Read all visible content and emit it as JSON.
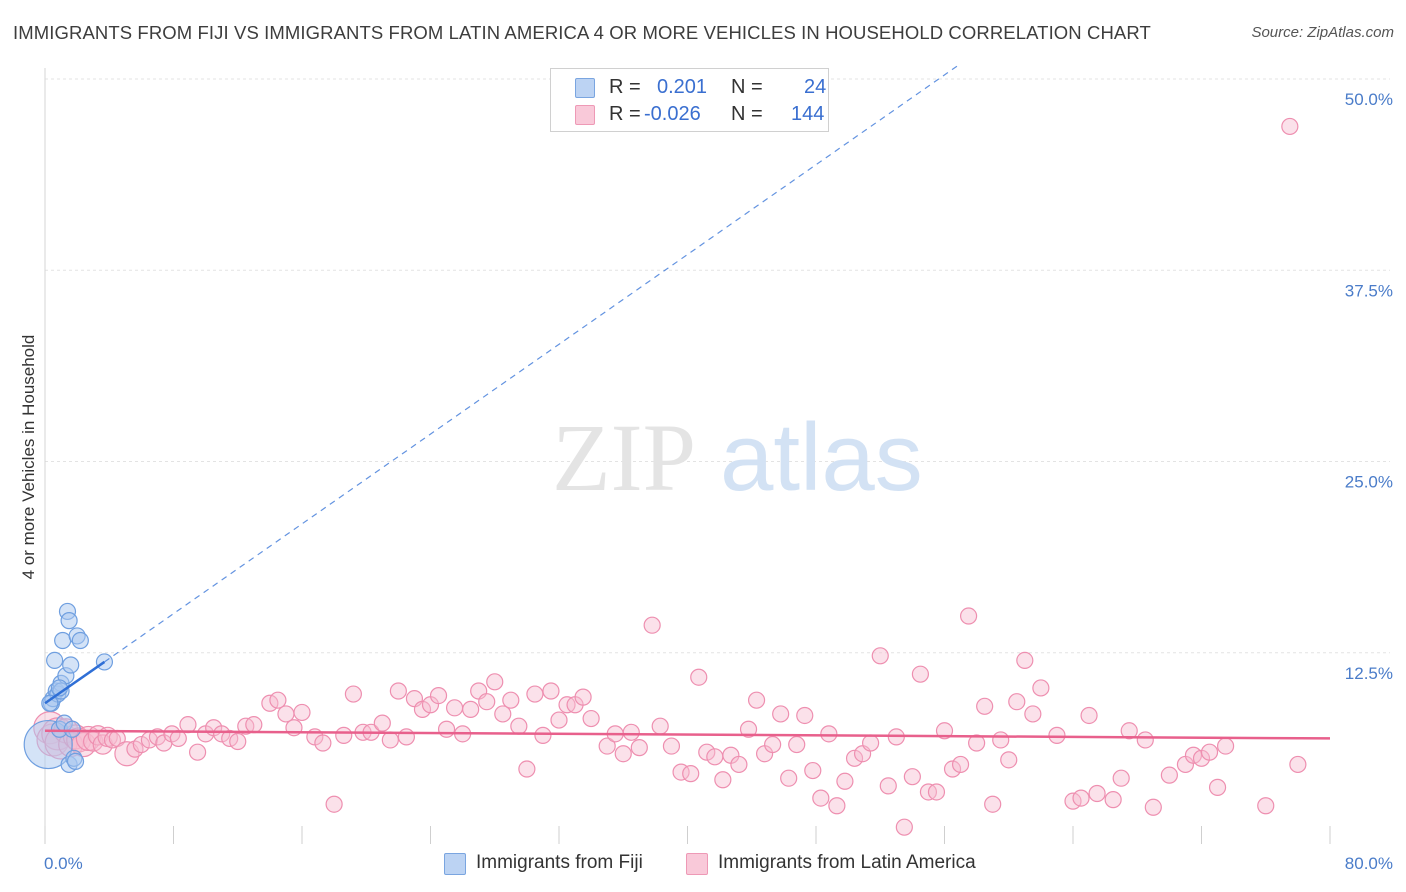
{
  "title": "IMMIGRANTS FROM FIJI VS IMMIGRANTS FROM LATIN AMERICA 4 OR MORE VEHICLES IN HOUSEHOLD CORRELATION CHART",
  "source": "Source: ZipAtlas.com",
  "watermark": {
    "zip": "ZIP",
    "atlas": "atlas"
  },
  "legend": {
    "series1": {
      "r_label": "R =",
      "r_value": "0.201",
      "n_label": "N =",
      "n_value": "24"
    },
    "series2": {
      "r_label": "R =",
      "r_value": "-0.026",
      "n_label": "N =",
      "n_value": "144"
    }
  },
  "colors": {
    "fiji_fill": "#a9c8f0",
    "fiji_stroke": "#6f9fe0",
    "fiji_line": "#2f6fd6",
    "latam_fill": "#f7bcd0",
    "latam_stroke": "#ee8fb0",
    "latam_line": "#e8608c",
    "axis_text": "#4a7cc9",
    "grid": "#e3e3e3"
  },
  "chart_data": {
    "type": "scatter",
    "title": "IMMIGRANTS FROM FIJI VS IMMIGRANTS FROM LATIN AMERICA 4 OR MORE VEHICLES IN HOUSEHOLD CORRELATION CHART",
    "xlabel": "",
    "ylabel": "4 or more Vehicles in Household",
    "xlim": [
      0,
      80
    ],
    "ylim": [
      0,
      50
    ],
    "x_tick_labels": [
      "0.0%",
      "80.0%"
    ],
    "y_ticks": [
      12.5,
      25.0,
      37.5,
      50.0
    ],
    "y_tick_labels": [
      "12.5%",
      "25.0%",
      "37.5%",
      "50.0%"
    ],
    "grid": true,
    "legend_position": "top-center",
    "series": [
      {
        "name": "Immigrants from Fiji",
        "r": 0.201,
        "n": 24,
        "trend": {
          "x0": 0,
          "y0": 9.2,
          "x1": 3.7,
          "y1": 11.9,
          "dashed_to_x": 57,
          "dashed_to_y": 51
        },
        "points": [
          [
            0.2,
            6.5,
            3
          ],
          [
            0.4,
            9.2,
            1
          ],
          [
            0.5,
            9.5,
            1
          ],
          [
            0.6,
            12.0,
            1
          ],
          [
            0.7,
            10.0,
            1
          ],
          [
            0.8,
            9.8,
            1
          ],
          [
            0.9,
            7.5,
            1
          ],
          [
            1.0,
            10.5,
            1
          ],
          [
            1.0,
            10.0,
            1
          ],
          [
            1.1,
            13.3,
            1
          ],
          [
            1.2,
            7.9,
            1
          ],
          [
            1.3,
            11.0,
            1
          ],
          [
            1.4,
            15.2,
            1
          ],
          [
            1.5,
            14.6,
            1
          ],
          [
            1.5,
            5.2,
            1
          ],
          [
            1.6,
            11.7,
            1
          ],
          [
            1.7,
            7.5,
            1
          ],
          [
            1.8,
            5.6,
            1
          ],
          [
            1.9,
            5.4,
            1
          ],
          [
            2.0,
            13.6,
            1
          ],
          [
            2.2,
            13.3,
            1
          ],
          [
            3.7,
            11.9,
            1
          ],
          [
            0.3,
            9.2,
            1
          ],
          [
            0.9,
            10.2,
            1
          ]
        ]
      },
      {
        "name": "Immigrants from Latin America",
        "r": -0.026,
        "n": 144,
        "trend": {
          "x0": 0,
          "y0": 7.4,
          "x1": 80,
          "y1": 6.9
        },
        "points": [
          [
            0.3,
            7.6,
            2
          ],
          [
            0.5,
            6.8,
            2
          ],
          [
            0.8,
            7.2,
            2
          ],
          [
            1.0,
            6.6,
            2
          ],
          [
            1.3,
            7.4,
            1.5
          ],
          [
            1.6,
            6.5,
            1.5
          ],
          [
            1.9,
            7.0,
            1.5
          ],
          [
            2.1,
            6.8,
            1.5
          ],
          [
            2.4,
            6.5,
            1.5
          ],
          [
            2.7,
            6.9,
            1.5
          ],
          [
            3.0,
            6.7,
            1.2
          ],
          [
            3.3,
            7.1,
            1.2
          ],
          [
            3.6,
            6.5,
            1.2
          ],
          [
            3.9,
            7.0,
            1.2
          ],
          [
            4.2,
            6.8,
            1
          ],
          [
            4.5,
            6.9,
            1
          ],
          [
            5.1,
            5.9,
            1.5
          ],
          [
            5.6,
            6.2,
            1
          ],
          [
            6.0,
            6.5,
            1
          ],
          [
            6.5,
            6.8,
            1
          ],
          [
            7.0,
            7.0,
            1
          ],
          [
            7.4,
            6.6,
            1
          ],
          [
            7.9,
            7.2,
            1
          ],
          [
            8.3,
            6.9,
            1
          ],
          [
            8.9,
            7.8,
            1
          ],
          [
            9.5,
            6.0,
            1
          ],
          [
            10.0,
            7.2,
            1
          ],
          [
            10.5,
            7.6,
            1
          ],
          [
            11.0,
            7.2,
            1
          ],
          [
            11.5,
            6.9,
            1
          ],
          [
            12.0,
            6.7,
            1
          ],
          [
            12.5,
            7.7,
            1
          ],
          [
            13.0,
            7.8,
            1
          ],
          [
            14.0,
            9.2,
            1
          ],
          [
            14.5,
            9.4,
            1
          ],
          [
            15.0,
            8.5,
            1
          ],
          [
            15.5,
            7.6,
            1
          ],
          [
            16.0,
            8.6,
            1
          ],
          [
            16.8,
            7.0,
            1
          ],
          [
            17.3,
            6.6,
            1
          ],
          [
            18.0,
            2.6,
            1
          ],
          [
            18.6,
            7.1,
            1
          ],
          [
            19.2,
            9.8,
            1
          ],
          [
            19.8,
            7.3,
            1
          ],
          [
            20.3,
            7.3,
            1
          ],
          [
            21.0,
            7.9,
            1
          ],
          [
            21.5,
            6.8,
            1
          ],
          [
            22.0,
            10.0,
            1
          ],
          [
            22.5,
            7.0,
            1
          ],
          [
            23.0,
            9.5,
            1
          ],
          [
            23.5,
            8.8,
            1
          ],
          [
            24.0,
            9.1,
            1
          ],
          [
            24.5,
            9.7,
            1
          ],
          [
            25.0,
            7.5,
            1
          ],
          [
            25.5,
            8.9,
            1
          ],
          [
            26.0,
            7.2,
            1
          ],
          [
            26.5,
            8.8,
            1
          ],
          [
            27.0,
            10.0,
            1
          ],
          [
            27.5,
            9.3,
            1
          ],
          [
            28.0,
            10.6,
            1
          ],
          [
            28.5,
            8.5,
            1
          ],
          [
            29.0,
            9.4,
            1
          ],
          [
            29.5,
            7.7,
            1
          ],
          [
            30.0,
            4.9,
            1
          ],
          [
            30.5,
            9.8,
            1
          ],
          [
            31.0,
            7.1,
            1
          ],
          [
            31.5,
            10.0,
            1
          ],
          [
            32.0,
            8.1,
            1
          ],
          [
            32.5,
            9.1,
            1
          ],
          [
            33.0,
            9.1,
            1
          ],
          [
            33.5,
            9.6,
            1
          ],
          [
            34.0,
            8.2,
            1
          ],
          [
            35.0,
            6.4,
            1
          ],
          [
            35.5,
            7.2,
            1
          ],
          [
            36.0,
            5.9,
            1
          ],
          [
            36.5,
            7.3,
            1
          ],
          [
            37.0,
            6.3,
            1
          ],
          [
            37.8,
            14.3,
            1
          ],
          [
            38.3,
            7.7,
            1
          ],
          [
            39.0,
            6.4,
            1
          ],
          [
            39.6,
            4.7,
            1
          ],
          [
            40.2,
            4.6,
            1
          ],
          [
            40.7,
            10.9,
            1
          ],
          [
            41.2,
            6.0,
            1
          ],
          [
            41.7,
            5.7,
            1
          ],
          [
            42.2,
            4.2,
            1
          ],
          [
            42.7,
            5.8,
            1
          ],
          [
            43.2,
            5.2,
            1
          ],
          [
            43.8,
            7.5,
            1
          ],
          [
            44.3,
            9.4,
            1
          ],
          [
            44.8,
            5.9,
            1
          ],
          [
            45.3,
            6.5,
            1
          ],
          [
            45.8,
            8.5,
            1
          ],
          [
            46.3,
            4.3,
            1
          ],
          [
            46.8,
            6.5,
            1
          ],
          [
            47.3,
            8.4,
            1
          ],
          [
            47.8,
            4.8,
            1
          ],
          [
            48.3,
            3.0,
            1
          ],
          [
            48.8,
            7.2,
            1
          ],
          [
            49.3,
            2.5,
            1
          ],
          [
            49.8,
            4.1,
            1
          ],
          [
            50.4,
            5.6,
            1
          ],
          [
            50.9,
            5.9,
            1
          ],
          [
            51.4,
            6.6,
            1
          ],
          [
            52.0,
            12.3,
            1
          ],
          [
            52.5,
            3.8,
            1
          ],
          [
            53.0,
            7.0,
            1
          ],
          [
            53.5,
            1.1,
            1
          ],
          [
            54.0,
            4.4,
            1
          ],
          [
            54.5,
            11.1,
            1
          ],
          [
            55.0,
            3.4,
            1
          ],
          [
            55.5,
            3.4,
            1
          ],
          [
            56.0,
            7.4,
            1
          ],
          [
            56.5,
            4.9,
            1
          ],
          [
            57.0,
            5.2,
            1
          ],
          [
            57.5,
            14.9,
            1
          ],
          [
            58.0,
            6.6,
            1
          ],
          [
            58.5,
            9.0,
            1
          ],
          [
            59.0,
            2.6,
            1
          ],
          [
            59.5,
            6.8,
            1
          ],
          [
            60.0,
            5.5,
            1
          ],
          [
            60.5,
            9.3,
            1
          ],
          [
            61.0,
            12.0,
            1
          ],
          [
            61.5,
            8.5,
            1
          ],
          [
            62.0,
            10.2,
            1
          ],
          [
            63.0,
            7.1,
            1
          ],
          [
            64.0,
            2.8,
            1
          ],
          [
            64.5,
            3.0,
            1
          ],
          [
            65.0,
            8.4,
            1
          ],
          [
            65.5,
            3.3,
            1
          ],
          [
            66.5,
            2.9,
            1
          ],
          [
            67.0,
            4.3,
            1
          ],
          [
            67.5,
            7.4,
            1
          ],
          [
            68.5,
            6.8,
            1
          ],
          [
            69.0,
            2.4,
            1
          ],
          [
            70.0,
            4.5,
            1
          ],
          [
            71.0,
            5.2,
            1
          ],
          [
            71.5,
            5.8,
            1
          ],
          [
            72.0,
            5.6,
            1
          ],
          [
            72.5,
            6.0,
            1
          ],
          [
            73.0,
            3.7,
            1
          ],
          [
            73.5,
            6.4,
            1
          ],
          [
            76.0,
            2.5,
            1
          ],
          [
            77.5,
            46.9,
            1
          ],
          [
            78.0,
            5.2,
            1
          ]
        ]
      }
    ]
  }
}
